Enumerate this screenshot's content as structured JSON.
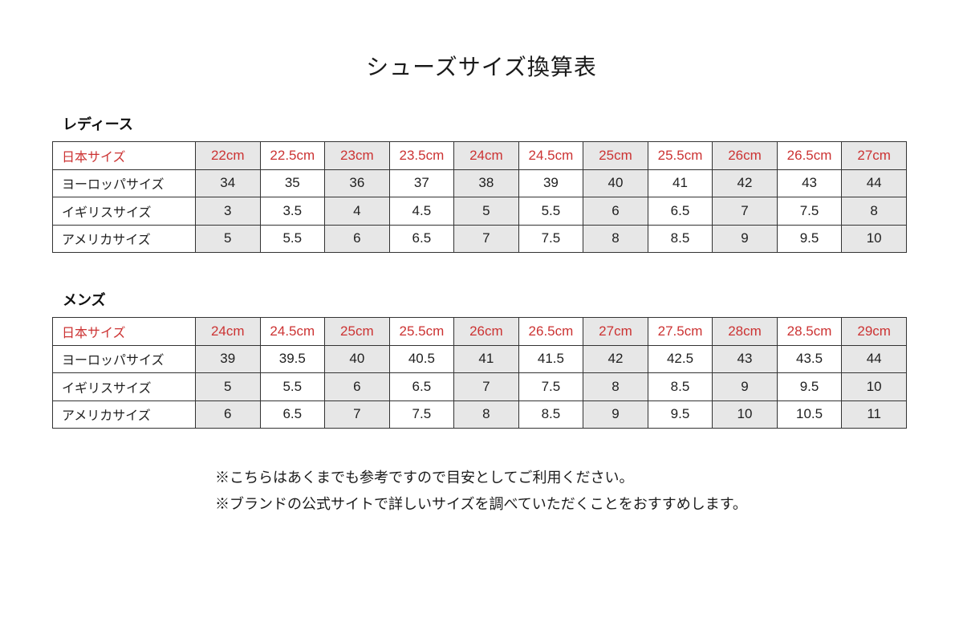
{
  "page": {
    "title": "シューズサイズ換算表"
  },
  "colors": {
    "accent_red": "#cc3333",
    "cell_gray": "#e7e7e7",
    "border": "#333333"
  },
  "tables": [
    {
      "section": "レディース",
      "rows": [
        {
          "label": "日本サイズ",
          "accent": true,
          "values": [
            "22cm",
            "22.5cm",
            "23cm",
            "23.5cm",
            "24cm",
            "24.5cm",
            "25cm",
            "25.5cm",
            "26cm",
            "26.5cm",
            "27cm"
          ]
        },
        {
          "label": "ヨーロッパサイズ",
          "accent": false,
          "values": [
            "34",
            "35",
            "36",
            "37",
            "38",
            "39",
            "40",
            "41",
            "42",
            "43",
            "44"
          ]
        },
        {
          "label": "イギリスサイズ",
          "accent": false,
          "values": [
            "3",
            "3.5",
            "4",
            "4.5",
            "5",
            "5.5",
            "6",
            "6.5",
            "7",
            "7.5",
            "8"
          ]
        },
        {
          "label": "アメリカサイズ",
          "accent": false,
          "values": [
            "5",
            "5.5",
            "6",
            "6.5",
            "7",
            "7.5",
            "8",
            "8.5",
            "9",
            "9.5",
            "10"
          ]
        }
      ]
    },
    {
      "section": "メンズ",
      "rows": [
        {
          "label": "日本サイズ",
          "accent": true,
          "values": [
            "24cm",
            "24.5cm",
            "25cm",
            "25.5cm",
            "26cm",
            "26.5cm",
            "27cm",
            "27.5cm",
            "28cm",
            "28.5cm",
            "29cm"
          ]
        },
        {
          "label": "ヨーロッパサイズ",
          "accent": false,
          "values": [
            "39",
            "39.5",
            "40",
            "40.5",
            "41",
            "41.5",
            "42",
            "42.5",
            "43",
            "43.5",
            "44"
          ]
        },
        {
          "label": "イギリスサイズ",
          "accent": false,
          "values": [
            "5",
            "5.5",
            "6",
            "6.5",
            "7",
            "7.5",
            "8",
            "8.5",
            "9",
            "9.5",
            "10"
          ]
        },
        {
          "label": "アメリカサイズ",
          "accent": false,
          "values": [
            "6",
            "6.5",
            "7",
            "7.5",
            "8",
            "8.5",
            "9",
            "9.5",
            "10",
            "10.5",
            "11"
          ]
        }
      ]
    }
  ],
  "notes": [
    "※こちらはあくまでも参考ですので目安としてご利用ください。",
    "※ブランドの公式サイトで詳しいサイズを調べていただくことをおすすめします。"
  ]
}
